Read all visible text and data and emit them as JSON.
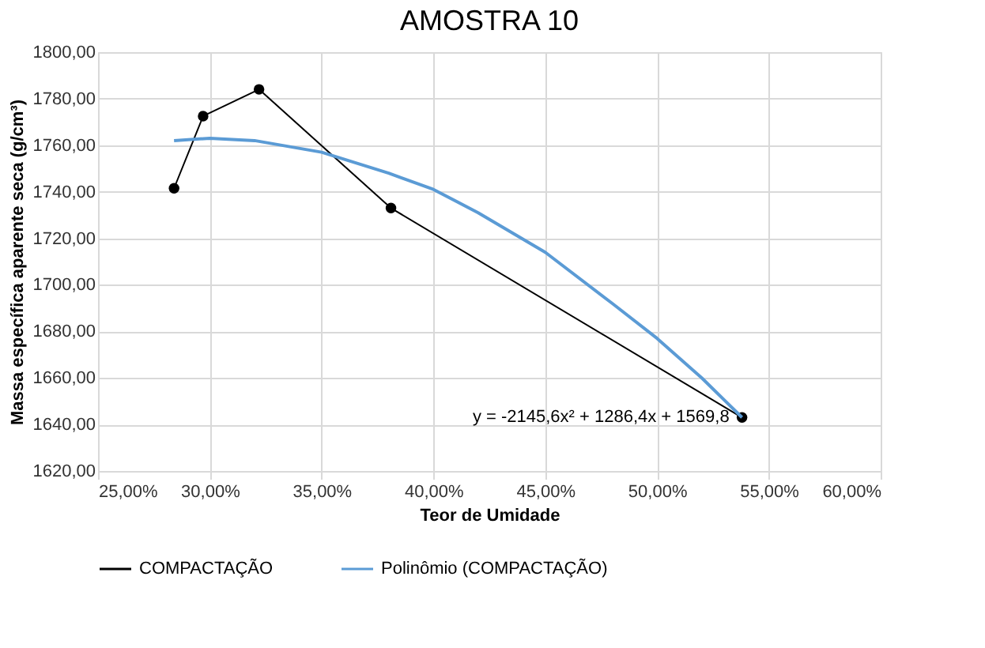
{
  "chart_data": {
    "type": "line",
    "title": "AMOSTRA 10",
    "xlabel": "Teor de Umidade",
    "ylabel": "Massa específica aparente seca (g/cm³)",
    "series": [
      {
        "name": "COMPACTAÇÃO",
        "color": "#000000",
        "marker": "circle",
        "x": [
          0.284,
          0.297,
          0.322,
          0.381,
          0.538
        ],
        "values": [
          1741.5,
          1772.5,
          1784,
          1733,
          1643
        ]
      },
      {
        "name": "Polinômio (COMPACTAÇÃO)",
        "color": "#5b9bd5",
        "marker": "none",
        "x": [
          0.284,
          0.3,
          0.32,
          0.35,
          0.38,
          0.4,
          0.42,
          0.45,
          0.48,
          0.5,
          0.52,
          0.538
        ],
        "values": [
          1762,
          1763,
          1762,
          1757,
          1748,
          1741,
          1731,
          1714,
          1692,
          1677,
          1660,
          1643
        ]
      }
    ],
    "xlim": [
      0.25,
      0.6
    ],
    "xticks": [
      {
        "value": 0.25,
        "label": "25,00%"
      },
      {
        "value": 0.3,
        "label": "30,00%"
      },
      {
        "value": 0.35,
        "label": "35,00%"
      },
      {
        "value": 0.4,
        "label": "40,00%"
      },
      {
        "value": 0.45,
        "label": "45,00%"
      },
      {
        "value": 0.5,
        "label": "50,00%"
      },
      {
        "value": 0.55,
        "label": "55,00%"
      },
      {
        "value": 0.6,
        "label": "60,00%"
      }
    ],
    "ylim": [
      1620,
      1800
    ],
    "yticks": [
      {
        "value": 1620,
        "label": "1620,00"
      },
      {
        "value": 1640,
        "label": "1640,00"
      },
      {
        "value": 1660,
        "label": "1660,00"
      },
      {
        "value": 1680,
        "label": "1680,00"
      },
      {
        "value": 1700,
        "label": "1700,00"
      },
      {
        "value": 1720,
        "label": "1720,00"
      },
      {
        "value": 1740,
        "label": "1740,00"
      },
      {
        "value": 1760,
        "label": "1760,00"
      },
      {
        "value": 1780,
        "label": "1780,00"
      },
      {
        "value": 1800,
        "label": "1800,00"
      }
    ],
    "annotations": [
      {
        "text": "y = -2145,6x² + 1286,4x + 1569,8",
        "x": 0.538,
        "y": 1643
      }
    ],
    "grid": true,
    "legend": "bottom"
  }
}
